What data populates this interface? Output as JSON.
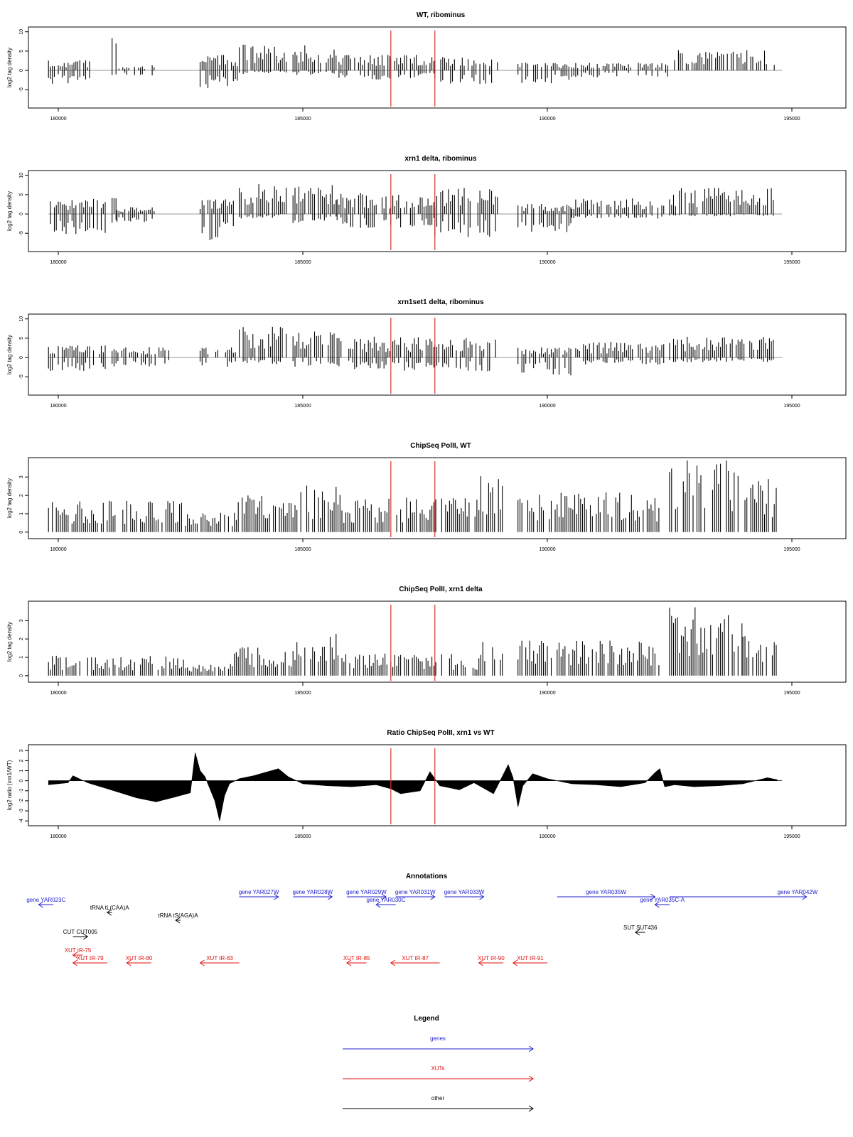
{
  "colors": {
    "bar": "#000000",
    "marker": "#e03030",
    "gene": "#2020d0",
    "xut": "#e01010",
    "other": "#000000",
    "axis": "#000000"
  },
  "x_axis": {
    "min": 179800,
    "max": 194800,
    "ticks": [
      180000,
      185000,
      190000,
      195000
    ],
    "tick_labels": [
      "180000",
      "185000",
      "190000",
      "195000"
    ]
  },
  "markers_x": [
    186800,
    187700
  ],
  "chart_data": [
    {
      "type": "bar",
      "title": "WT, ribominus",
      "ylabel": "log2 tag density",
      "ylim": [
        -9,
        10.5
      ],
      "yticks": [
        -5,
        0,
        5,
        10
      ],
      "ytick_labels": [
        "-5",
        "0",
        "5",
        "10"
      ],
      "two_sided": true,
      "regions": [
        {
          "x": [
            179800,
            180700
          ],
          "pos": 2,
          "neg": -3
        },
        {
          "x": [
            181100,
            181200
          ],
          "pos": 7,
          "neg": -1
        },
        {
          "x": [
            181200,
            182000
          ],
          "pos": 1,
          "neg": -2
        },
        {
          "x": [
            182900,
            183700
          ],
          "pos": 3,
          "neg": -4
        },
        {
          "x": [
            183700,
            184700
          ],
          "pos": 5,
          "neg": -1
        },
        {
          "x": [
            184800,
            185700
          ],
          "pos": 5,
          "neg": -1
        },
        {
          "x": [
            185700,
            186800
          ],
          "pos": 3,
          "neg": -2
        },
        {
          "x": [
            186800,
            187700
          ],
          "pos": 3,
          "neg": -2
        },
        {
          "x": [
            187700,
            189000
          ],
          "pos": 3,
          "neg": -3
        },
        {
          "x": [
            189400,
            190500
          ],
          "pos": 1.5,
          "neg": -3
        },
        {
          "x": [
            190500,
            192500
          ],
          "pos": 1.5,
          "neg": -1.5
        },
        {
          "x": [
            192600,
            194700
          ],
          "pos": 4,
          "neg": 0
        }
      ]
    },
    {
      "type": "bar",
      "title": "xrn1 delta, ribominus",
      "ylabel": "log2 tag density",
      "ylim": [
        -9,
        10.5
      ],
      "yticks": [
        -5,
        0,
        5,
        10
      ],
      "ytick_labels": [
        "-5",
        "0",
        "5",
        "10"
      ],
      "two_sided": true,
      "regions": [
        {
          "x": [
            179800,
            181000
          ],
          "pos": 3,
          "neg": -5
        },
        {
          "x": [
            181100,
            181200
          ],
          "pos": 6,
          "neg": -2
        },
        {
          "x": [
            181200,
            182000
          ],
          "pos": 1.5,
          "neg": -2
        },
        {
          "x": [
            182900,
            183700
          ],
          "pos": 3,
          "neg": -6
        },
        {
          "x": [
            183700,
            184700
          ],
          "pos": 6,
          "neg": -1
        },
        {
          "x": [
            184800,
            185700
          ],
          "pos": 6,
          "neg": -2
        },
        {
          "x": [
            185700,
            186800
          ],
          "pos": 4,
          "neg": -3
        },
        {
          "x": [
            186800,
            187700
          ],
          "pos": 4,
          "neg": -3
        },
        {
          "x": [
            187700,
            189000
          ],
          "pos": 5,
          "neg": -5
        },
        {
          "x": [
            189400,
            190500
          ],
          "pos": 2,
          "neg": -4
        },
        {
          "x": [
            190500,
            192400
          ],
          "pos": 3,
          "neg": -1
        },
        {
          "x": [
            192500,
            194700
          ],
          "pos": 5,
          "neg": -0.5
        }
      ]
    },
    {
      "type": "bar",
      "title": "xrn1set1 delta, ribominus",
      "ylabel": "log2 tag density",
      "ylim": [
        -9,
        10.5
      ],
      "yticks": [
        -5,
        0,
        5,
        10
      ],
      "ytick_labels": [
        "-5",
        "0",
        "5",
        "10"
      ],
      "two_sided": true,
      "regions": [
        {
          "x": [
            179800,
            181000
          ],
          "pos": 2.5,
          "neg": -3
        },
        {
          "x": [
            181100,
            182300
          ],
          "pos": 2,
          "neg": -2
        },
        {
          "x": [
            182900,
            183700
          ],
          "pos": 2,
          "neg": -2
        },
        {
          "x": [
            183700,
            184700
          ],
          "pos": 6,
          "neg": -1.5
        },
        {
          "x": [
            184800,
            185700
          ],
          "pos": 5,
          "neg": -2
        },
        {
          "x": [
            185700,
            186800
          ],
          "pos": 4,
          "neg": -2.5
        },
        {
          "x": [
            186800,
            187700
          ],
          "pos": 4,
          "neg": -3
        },
        {
          "x": [
            187700,
            189000
          ],
          "pos": 4,
          "neg": -3
        },
        {
          "x": [
            189400,
            190500
          ],
          "pos": 2,
          "neg": -4
        },
        {
          "x": [
            190500,
            192400
          ],
          "pos": 3,
          "neg": -1.5
        },
        {
          "x": [
            192500,
            194700
          ],
          "pos": 4,
          "neg": -1
        }
      ]
    },
    {
      "type": "bar",
      "title": "ChipSeq PolII, WT",
      "ylabel": "log2 tag density",
      "ylim": [
        -0.2,
        3.9
      ],
      "yticks": [
        0,
        1,
        2,
        3
      ],
      "ytick_labels": [
        "0",
        "1",
        "2",
        "3"
      ],
      "two_sided": false,
      "regions": [
        {
          "x": [
            179800,
            182600
          ],
          "pos": 1.3,
          "neg": 0
        },
        {
          "x": [
            182600,
            183600
          ],
          "pos": 0.8,
          "neg": 0
        },
        {
          "x": [
            183600,
            184800
          ],
          "pos": 1.5,
          "neg": 0
        },
        {
          "x": [
            184800,
            185800
          ],
          "pos": 2,
          "neg": 0
        },
        {
          "x": [
            185800,
            188600
          ],
          "pos": 1.4,
          "neg": 0
        },
        {
          "x": [
            188600,
            189100
          ],
          "pos": 2.4,
          "neg": 0
        },
        {
          "x": [
            189400,
            192300
          ],
          "pos": 1.6,
          "neg": 0
        },
        {
          "x": [
            192500,
            194000
          ],
          "pos": 3.1,
          "neg": 0
        },
        {
          "x": [
            194000,
            194700
          ],
          "pos": 2.2,
          "neg": 0
        }
      ]
    },
    {
      "type": "bar",
      "title": "ChipSeq PolII, xrn1 delta",
      "ylabel": "log2 tag density",
      "ylim": [
        -0.2,
        3.9
      ],
      "yticks": [
        0,
        1,
        2,
        3
      ],
      "ytick_labels": [
        "0",
        "1",
        "2",
        "3"
      ],
      "two_sided": false,
      "regions": [
        {
          "x": [
            179800,
            182600
          ],
          "pos": 0.8,
          "neg": 0
        },
        {
          "x": [
            182600,
            183600
          ],
          "pos": 0.5,
          "neg": 0
        },
        {
          "x": [
            183600,
            184800
          ],
          "pos": 1.2,
          "neg": 0
        },
        {
          "x": [
            184800,
            185800
          ],
          "pos": 1.8,
          "neg": 0
        },
        {
          "x": [
            185800,
            188600
          ],
          "pos": 0.9,
          "neg": 0
        },
        {
          "x": [
            188600,
            189100
          ],
          "pos": 1.8,
          "neg": 0
        },
        {
          "x": [
            189400,
            192300
          ],
          "pos": 1.5,
          "neg": 0
        },
        {
          "x": [
            192500,
            194000
          ],
          "pos": 2.8,
          "neg": 0
        },
        {
          "x": [
            194000,
            194700
          ],
          "pos": 1.8,
          "neg": 0
        }
      ]
    },
    {
      "type": "area",
      "title": "Ratio ChipSeq PolII, xrn1 vs WT",
      "ylabel": "log2 ratio (xrn1/WT)",
      "ylim": [
        -4.2,
        3.3
      ],
      "yticks": [
        -4,
        -3,
        -2,
        -1,
        0,
        1,
        2,
        3
      ],
      "ytick_labels": [
        "-4",
        "-3",
        "-2",
        "-1",
        "0",
        "1",
        "2",
        "3"
      ],
      "x": [
        179800,
        180200,
        180300,
        180600,
        181000,
        181600,
        182000,
        182400,
        182700,
        182800,
        182900,
        183000,
        183200,
        183300,
        183400,
        183500,
        183700,
        184000,
        184500,
        184700,
        185000,
        185500,
        186000,
        186500,
        186800,
        187000,
        187400,
        187600,
        187800,
        188200,
        188500,
        188900,
        189200,
        189300,
        189400,
        189500,
        189700,
        190000,
        190500,
        191000,
        191500,
        192000,
        192200,
        192300,
        192400,
        192600,
        193000,
        193500,
        194000,
        194500,
        194700
      ],
      "y": [
        -0.4,
        -0.2,
        0.5,
        -0.2,
        -0.8,
        -1.7,
        -2.1,
        -1.6,
        -1.2,
        2.8,
        1.0,
        0.4,
        -2.0,
        -4.0,
        -1.5,
        -0.3,
        0.2,
        0.5,
        1.2,
        0.4,
        -0.3,
        -0.5,
        -0.6,
        -0.4,
        -0.8,
        -1.3,
        -1.0,
        0.9,
        -0.5,
        -0.9,
        -0.2,
        -1.3,
        1.6,
        0.3,
        -2.6,
        -0.5,
        0.7,
        0.2,
        -0.3,
        -0.4,
        -0.6,
        -0.2,
        0.8,
        1.2,
        -0.6,
        -0.4,
        -0.6,
        -0.5,
        -0.3,
        0.3,
        0.1
      ]
    }
  ],
  "annotations": {
    "title": "Annotations",
    "items": [
      {
        "label": "gene YAR023C",
        "kind": "gene",
        "x1": 179600,
        "x2": 179900,
        "row": 1,
        "dir": "left"
      },
      {
        "label": "gene YAR027W",
        "kind": "gene",
        "x1": 183700,
        "x2": 184500,
        "row": 0,
        "dir": "right"
      },
      {
        "label": "gene YAR028W",
        "kind": "gene",
        "x1": 184800,
        "x2": 185600,
        "row": 0,
        "dir": "right"
      },
      {
        "label": "gene YAR029W",
        "kind": "gene",
        "x1": 185900,
        "x2": 186700,
        "row": 0,
        "dir": "right"
      },
      {
        "label": "gene YAR030C",
        "kind": "gene",
        "x1": 186500,
        "x2": 186900,
        "row": 1,
        "dir": "left"
      },
      {
        "label": "gene YAR031W",
        "kind": "gene",
        "x1": 186900,
        "x2": 187700,
        "row": 0,
        "dir": "right"
      },
      {
        "label": "gene YAR033W",
        "kind": "gene",
        "x1": 187900,
        "x2": 188700,
        "row": 0,
        "dir": "right"
      },
      {
        "label": "gene YAR035W",
        "kind": "gene",
        "x1": 190200,
        "x2": 192200,
        "row": 0,
        "dir": "right"
      },
      {
        "label": "gene YAR035C-A",
        "kind": "gene",
        "x1": 192200,
        "x2": 192500,
        "row": 1,
        "dir": "left"
      },
      {
        "label": "gene YAR042W",
        "kind": "gene",
        "x1": 192500,
        "x2": 195300,
        "row": 0,
        "dir": "right"
      },
      {
        "label": "tRNA tL(CAA)A",
        "kind": "other",
        "x1": 181000,
        "x2": 181100,
        "row": 2,
        "dir": "left"
      },
      {
        "label": "tRNA tS(AGA)A",
        "kind": "other",
        "x1": 182400,
        "x2": 182500,
        "row": 3,
        "dir": "left"
      },
      {
        "label": "CUT CUT005",
        "kind": "other",
        "x1": 180300,
        "x2": 180600,
        "row": 4,
        "dir": "right"
      },
      {
        "label": "SUT SUT436",
        "kind": "other",
        "x1": 191800,
        "x2": 192000,
        "row": 5,
        "dir": "left"
      },
      {
        "label": "XUT tR-75",
        "kind": "xut",
        "x1": 180300,
        "x2": 180500,
        "row": 6,
        "dir": "left"
      },
      {
        "label": "XUT tR-79",
        "kind": "xut",
        "x1": 180300,
        "x2": 181000,
        "row": 7,
        "dir": "left"
      },
      {
        "label": "XUT tR-80",
        "kind": "xut",
        "x1": 181400,
        "x2": 181900,
        "row": 7,
        "dir": "left"
      },
      {
        "label": "XUT tR-83",
        "kind": "xut",
        "x1": 182900,
        "x2": 183700,
        "row": 7,
        "dir": "left"
      },
      {
        "label": "XUT tR-85",
        "kind": "xut",
        "x1": 185900,
        "x2": 186300,
        "row": 7,
        "dir": "left"
      },
      {
        "label": "XUT tR-87",
        "kind": "xut",
        "x1": 186800,
        "x2": 187800,
        "row": 7,
        "dir": "left"
      },
      {
        "label": "XUT tR-90",
        "kind": "xut",
        "x1": 188600,
        "x2": 189100,
        "row": 7,
        "dir": "left"
      },
      {
        "label": "XUT tR-91",
        "kind": "xut",
        "x1": 189300,
        "x2": 190000,
        "row": 7,
        "dir": "left"
      }
    ]
  },
  "legend": {
    "title": "Legend",
    "entries": [
      {
        "label": "genes",
        "kind": "gene"
      },
      {
        "label": "XUTs",
        "kind": "xut"
      },
      {
        "label": "other",
        "kind": "other"
      }
    ]
  }
}
